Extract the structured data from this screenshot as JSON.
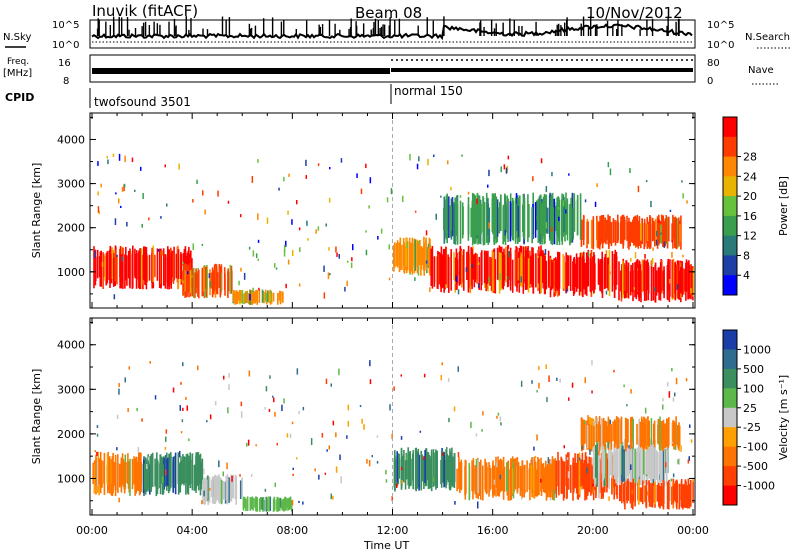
{
  "header": {
    "station": "Inuvik (fitACF)",
    "beam": "Beam 08",
    "date": "10/Nov/2012"
  },
  "sky_panel": {
    "left_label": "N.Sky",
    "right_label": "N.Search",
    "ytick_top": "10^5",
    "ytick_bottom": "10^0"
  },
  "freq_panel": {
    "left_label_1": "Freq.",
    "left_label_2": "[MHz]",
    "right_label": "Nave",
    "left_ticks": [
      "16",
      "8"
    ],
    "right_ticks": [
      "80",
      "0"
    ]
  },
  "cpid_panel": {
    "label": "CPID",
    "mode_1": "twofsound 3501",
    "mode_2": "normal 150"
  },
  "colors": {
    "power": [
      "#0000ff",
      "#1e3fa6",
      "#2a7a7a",
      "#3a9e4f",
      "#66c23a",
      "#e8b400",
      "#ff8800",
      "#ff3c00",
      "#ff0000"
    ],
    "velocity": [
      "#1a3da8",
      "#2f6c8f",
      "#3b8f5e",
      "#5cb84a",
      "#c8c8c8",
      "#ffa000",
      "#ff7400",
      "#ff4000",
      "#ff0000"
    ]
  },
  "chart_data": [
    {
      "type": "heatmap",
      "name": "power",
      "ylabel": "Slant Range [km]",
      "yticks": [
        "1000",
        "2000",
        "3000",
        "4000"
      ],
      "ylim": [
        180,
        4600
      ],
      "xticks": [
        "00:00",
        "04:00",
        "08:00",
        "12:00",
        "16:00",
        "20:00",
        "00:00"
      ],
      "colorbar_label": "Power [dB]",
      "colorbar_ticks": [
        "4",
        "8",
        "12",
        "16",
        "20",
        "24",
        "28"
      ],
      "regions": [
        {
          "x": [
            0.0,
            4.0
          ],
          "y": [
            600,
            1600
          ],
          "level": 8
        },
        {
          "x": [
            3.6,
            5.6
          ],
          "y": [
            400,
            1200
          ],
          "level": 7
        },
        {
          "x": [
            5.6,
            7.6
          ],
          "y": [
            250,
            600
          ],
          "level": 6
        },
        {
          "x": [
            12.0,
            13.5
          ],
          "y": [
            900,
            1800
          ],
          "level": 6
        },
        {
          "x": [
            13.5,
            18.0
          ],
          "y": [
            500,
            1600
          ],
          "level": 8
        },
        {
          "x": [
            18.0,
            21.0
          ],
          "y": [
            400,
            1500
          ],
          "level": 8
        },
        {
          "x": [
            21.0,
            24.0
          ],
          "y": [
            300,
            1300
          ],
          "level": 8
        },
        {
          "x": [
            19.5,
            23.5
          ],
          "y": [
            1500,
            2300
          ],
          "level": 7
        },
        {
          "x": [
            14.0,
            19.5
          ],
          "y": [
            1600,
            2800
          ],
          "level": 3
        }
      ]
    },
    {
      "type": "heatmap",
      "name": "velocity",
      "ylabel": "Slant Range [km]",
      "yticks": [
        "1000",
        "2000",
        "3000",
        "4000"
      ],
      "ylim": [
        180,
        4600
      ],
      "xticks": [
        "00:00",
        "04:00",
        "08:00",
        "12:00",
        "16:00",
        "20:00",
        "00:00"
      ],
      "xlabel": "Time UT",
      "colorbar_label": "Velocity [m s⁻¹]",
      "colorbar_ticks": [
        "1000",
        "500",
        "100",
        "25",
        "-25",
        "-100",
        "-500",
        "-1000"
      ],
      "regions": [
        {
          "x": [
            0.0,
            2.0
          ],
          "y": [
            600,
            1600
          ],
          "level": 6
        },
        {
          "x": [
            2.0,
            4.4
          ],
          "y": [
            600,
            1600
          ],
          "level": 2
        },
        {
          "x": [
            4.4,
            6.0
          ],
          "y": [
            400,
            1100
          ],
          "level": 4
        },
        {
          "x": [
            6.0,
            8.0
          ],
          "y": [
            250,
            600
          ],
          "level": 3
        },
        {
          "x": [
            12.0,
            14.5
          ],
          "y": [
            700,
            1700
          ],
          "level": 2
        },
        {
          "x": [
            14.5,
            18.5
          ],
          "y": [
            500,
            1500
          ],
          "level": 6
        },
        {
          "x": [
            18.5,
            21.0
          ],
          "y": [
            500,
            1600
          ],
          "level": 7
        },
        {
          "x": [
            20.0,
            23.0
          ],
          "y": [
            800,
            1900
          ],
          "level": 4
        },
        {
          "x": [
            21.0,
            24.0
          ],
          "y": [
            300,
            1000
          ],
          "level": 7
        },
        {
          "x": [
            19.5,
            23.5
          ],
          "y": [
            1600,
            2400
          ],
          "level": 6
        }
      ]
    }
  ]
}
